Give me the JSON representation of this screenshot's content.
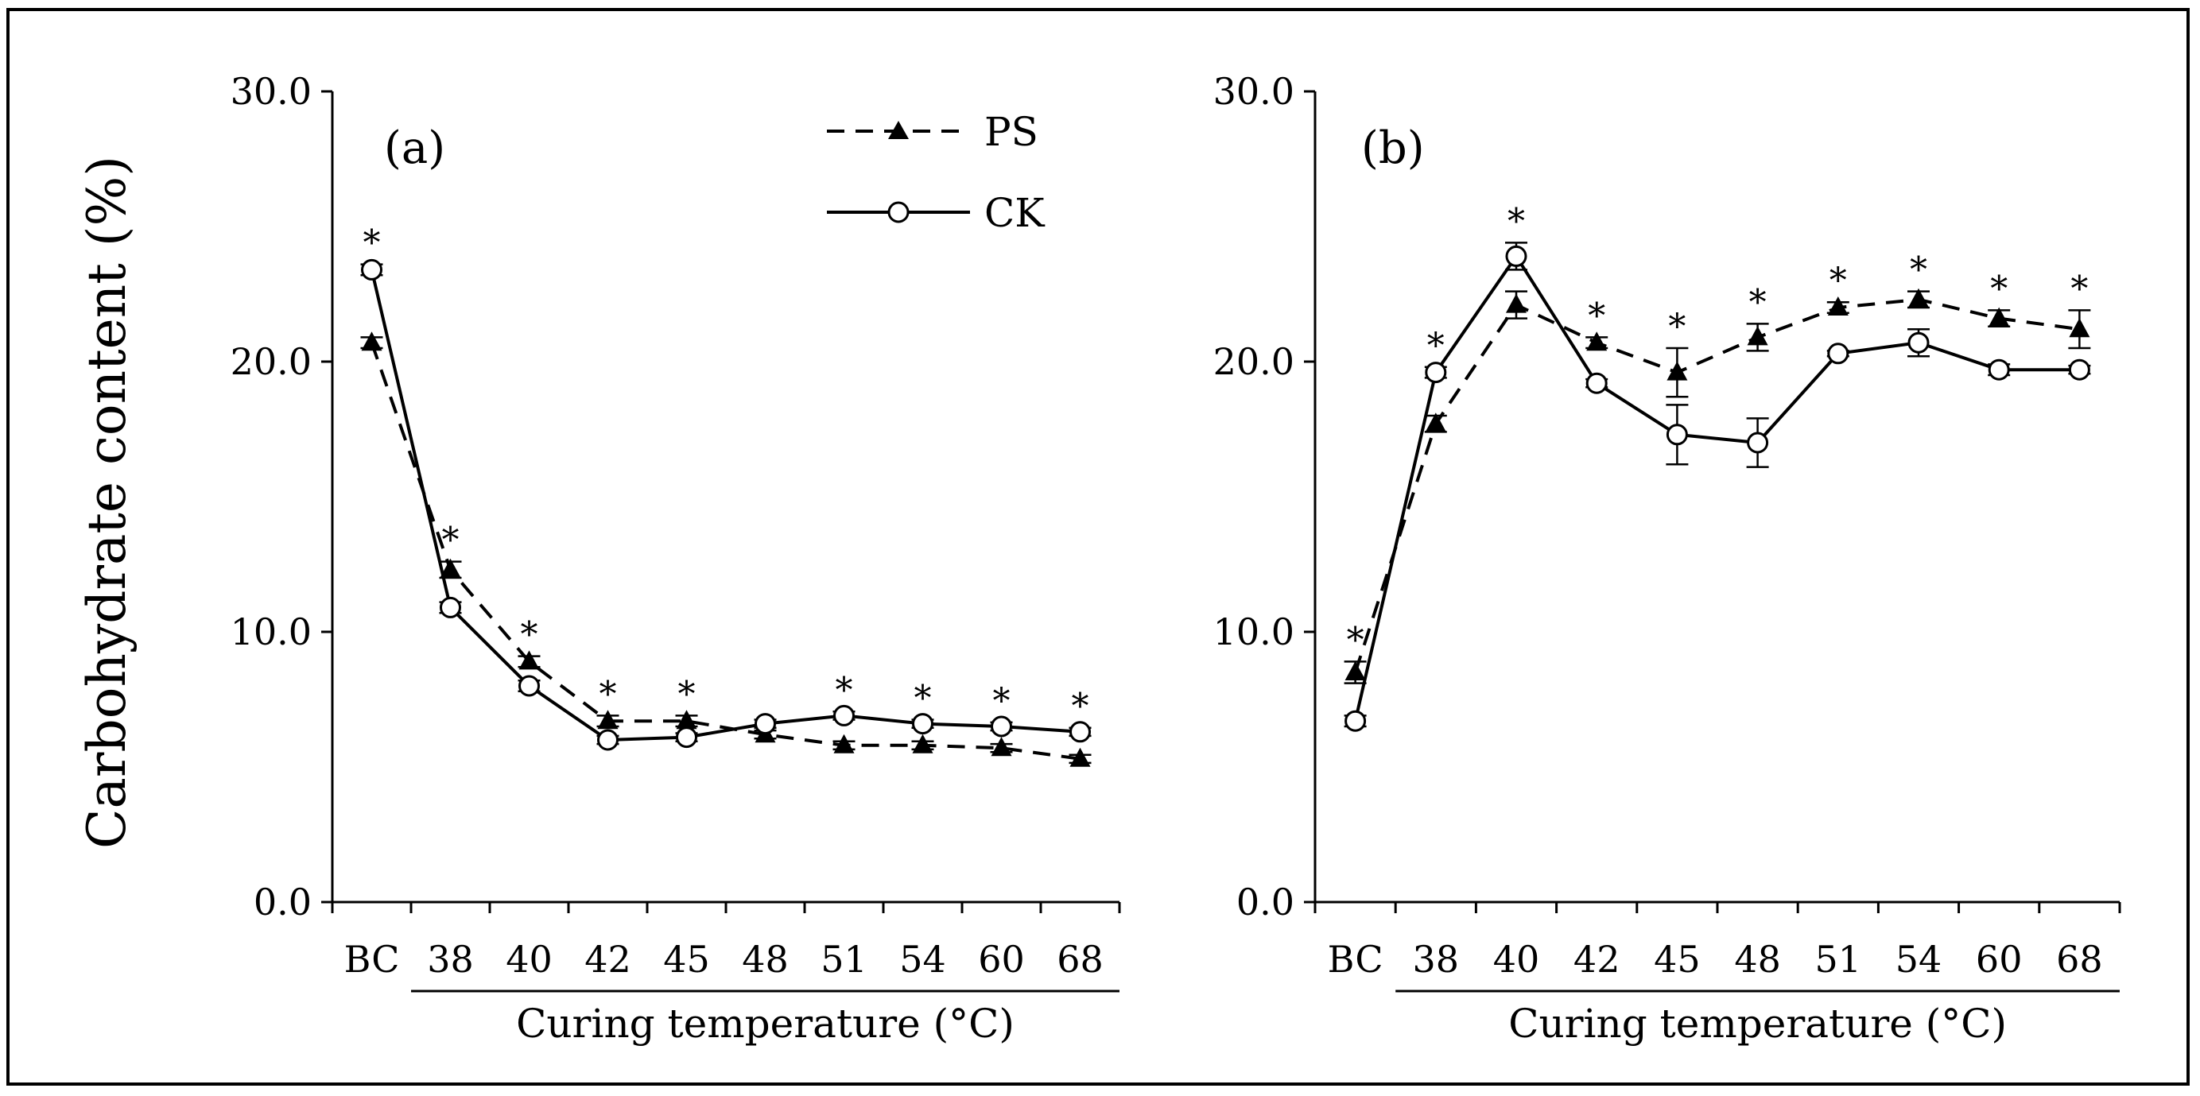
{
  "figure": {
    "ylabel": "Carbohydrate content (%)",
    "xlabel": "Curing temperature (°C)"
  },
  "chart_data": [
    {
      "type": "line",
      "panel_label": "(a)",
      "categories": [
        "BC",
        "38",
        "40",
        "42",
        "45",
        "48",
        "51",
        "54",
        "60",
        "68"
      ],
      "xlabel": "Curing temperature (°C)",
      "ylabel": "Carbohydrate content (%)",
      "ylim": [
        0,
        30
      ],
      "yticks": [
        "0.0",
        "10.0",
        "20.0",
        "30.0"
      ],
      "legend": {
        "position": "top-right",
        "entries": [
          "PS",
          "CK"
        ]
      },
      "series": [
        {
          "name": "PS",
          "style": "dashed",
          "marker": "filled-triangle",
          "values": [
            20.7,
            12.3,
            8.9,
            6.7,
            6.7,
            6.2,
            5.8,
            5.8,
            5.7,
            5.3
          ],
          "errors": [
            0.2,
            0.3,
            0.2,
            0.2,
            0.2,
            0.15,
            0.15,
            0.15,
            0.15,
            0.15
          ]
        },
        {
          "name": "CK",
          "style": "solid",
          "marker": "open-circle",
          "values": [
            23.4,
            10.9,
            8.0,
            6.0,
            6.1,
            6.6,
            6.9,
            6.6,
            6.5,
            6.3
          ],
          "errors": [
            0.2,
            0.2,
            0.2,
            0.15,
            0.15,
            0.15,
            0.15,
            0.15,
            0.15,
            0.15
          ]
        }
      ],
      "significance": [
        "*",
        "*",
        "*",
        "*",
        "*",
        "",
        "*",
        "*",
        "*",
        "*"
      ]
    },
    {
      "type": "line",
      "panel_label": "(b)",
      "categories": [
        "BC",
        "38",
        "40",
        "42",
        "45",
        "48",
        "51",
        "54",
        "60",
        "68"
      ],
      "xlabel": "Curing temperature (°C)",
      "ylabel": "Carbohydrate content (%)",
      "ylim": [
        0,
        30
      ],
      "yticks": [
        "0.0",
        "10.0",
        "20.0",
        "30.0"
      ],
      "series": [
        {
          "name": "PS",
          "style": "dashed",
          "marker": "filled-triangle",
          "values": [
            8.5,
            17.7,
            22.1,
            20.7,
            19.6,
            20.9,
            22.0,
            22.3,
            21.6,
            21.2
          ],
          "errors": [
            0.4,
            0.3,
            0.5,
            0.2,
            0.9,
            0.5,
            0.2,
            0.3,
            0.3,
            0.7
          ]
        },
        {
          "name": "CK",
          "style": "solid",
          "marker": "open-circle",
          "values": [
            6.7,
            19.6,
            23.9,
            19.2,
            17.3,
            17.0,
            20.3,
            20.7,
            19.7,
            19.7
          ],
          "errors": [
            0.2,
            0.2,
            0.5,
            0.15,
            1.1,
            0.9,
            0.1,
            0.5,
            0.2,
            0.15
          ]
        }
      ],
      "significance": [
        "*",
        "*",
        "*",
        "*",
        "*",
        "*",
        "*",
        "*",
        "*",
        "*"
      ]
    }
  ]
}
